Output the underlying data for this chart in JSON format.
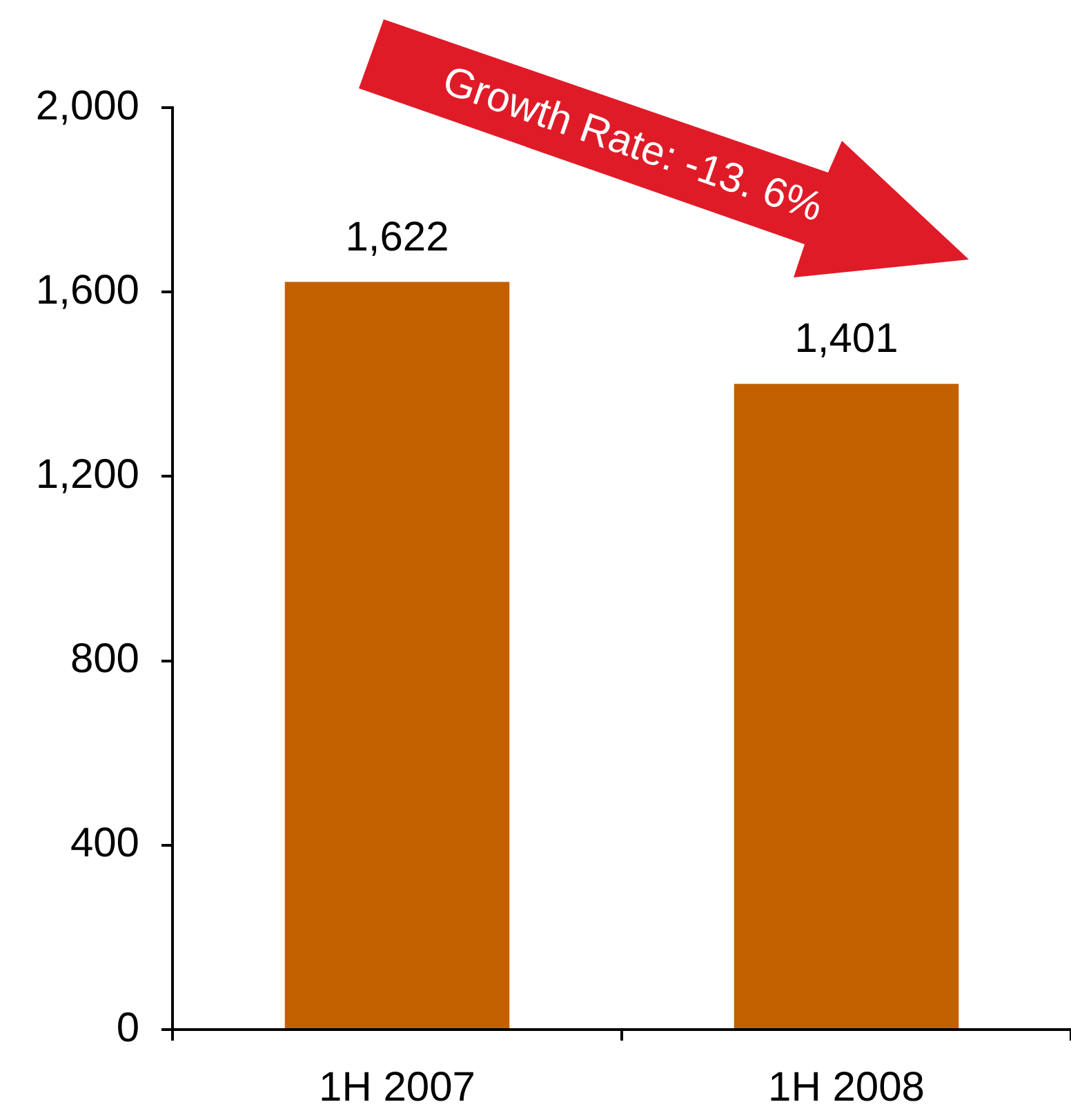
{
  "chart_data": {
    "type": "bar",
    "categories": [
      "1H 2007",
      "1H 2008"
    ],
    "values": [
      1622,
      1401
    ],
    "value_labels": [
      "1,622",
      "1,401"
    ],
    "color": "#c26000",
    "ylim": [
      0,
      2000
    ],
    "yticks": [
      0,
      400,
      800,
      {
        "value": 1200,
        "label": "1,200"
      },
      {
        "value": 1600,
        "label": "1,600"
      },
      {
        "value": 2000,
        "label": "2,000"
      }
    ],
    "annotations": [
      "Growth Rate: -13. 6%"
    ]
  }
}
